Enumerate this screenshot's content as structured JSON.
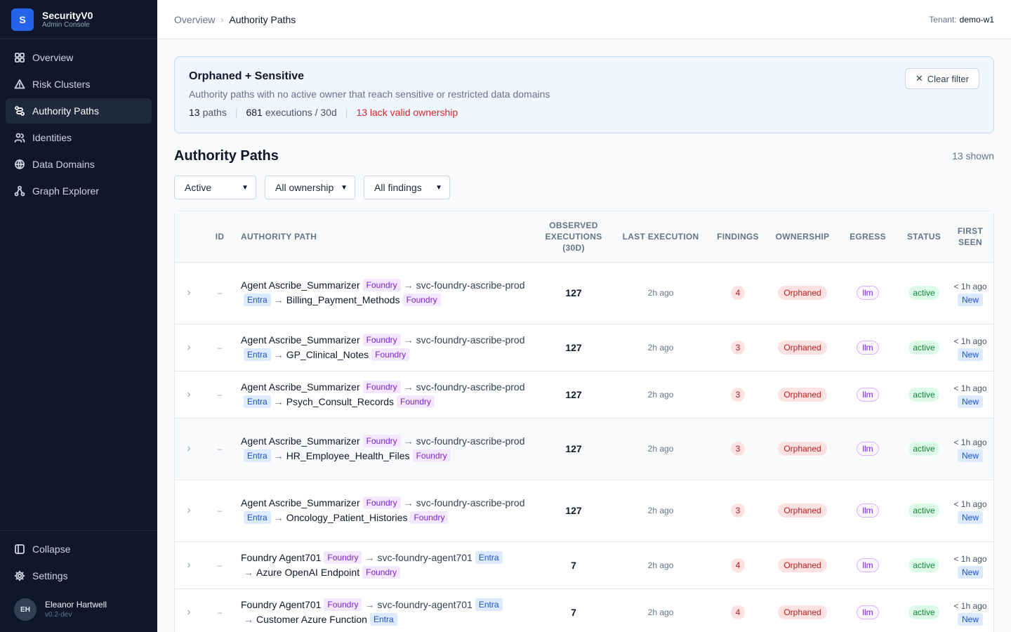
{
  "brand": {
    "logo_letter": "S",
    "title": "SecurityV0",
    "subtitle": "Admin Console"
  },
  "nav": {
    "items": [
      {
        "label": "Overview",
        "icon": "grid-icon"
      },
      {
        "label": "Risk Clusters",
        "icon": "warning-icon"
      },
      {
        "label": "Authority Paths",
        "icon": "route-icon",
        "active": true
      },
      {
        "label": "Identities",
        "icon": "users-icon"
      },
      {
        "label": "Data Domains",
        "icon": "globe-icon"
      },
      {
        "label": "Graph Explorer",
        "icon": "graph-icon"
      }
    ],
    "collapse": "Collapse",
    "settings": "Settings"
  },
  "user": {
    "initials": "EH",
    "name": "Eleanor Hartwell",
    "version": "v0.2-dev"
  },
  "breadcrumb": {
    "parent": "Overview",
    "separator": "›",
    "current": "Authority Paths"
  },
  "tenant": {
    "label": "Tenant:",
    "value": "demo-w1"
  },
  "banner": {
    "title": "Orphaned + Sensitive",
    "description": "Authority paths with no active owner that reach sensitive or restricted data domains",
    "paths_count": "13",
    "paths_label": "paths",
    "exec_count": "681",
    "exec_label": "executions / 30d",
    "warning": "13 lack valid ownership",
    "clear_label": "Clear filter"
  },
  "section": {
    "title": "Authority Paths",
    "shown": "13 shown"
  },
  "filters": {
    "status": "Active",
    "ownership": "All ownership",
    "findings": "All findings"
  },
  "table": {
    "headers": {
      "id": "ID",
      "path": "Authority Path",
      "executions": "Observed Executions (30D)",
      "last": "Last Execution",
      "findings": "Findings",
      "ownership": "Ownership",
      "egress": "Egress",
      "status": "Status",
      "first_seen": "First Seen"
    },
    "rows": [
      {
        "id": "–",
        "agent": "Agent Ascribe_Summarizer",
        "agent_tag": "Foundry",
        "identity": "svc-foundry-ascribe-prod",
        "identity_tag": "Entra",
        "resource": "Billing_Payment_Methods",
        "resource_tag": "Foundry",
        "executions": "127",
        "last": "2h ago",
        "findings": "4",
        "ownership": "Orphaned",
        "egress": "llm",
        "status": "active",
        "first_seen": "< 1h ago",
        "new": "New"
      },
      {
        "id": "–",
        "agent": "Agent Ascribe_Summarizer",
        "agent_tag": "Foundry",
        "identity": "svc-foundry-ascribe-prod",
        "identity_tag": "Entra",
        "resource": "GP_Clinical_Notes",
        "resource_tag": "Foundry",
        "executions": "127",
        "last": "2h ago",
        "findings": "3",
        "ownership": "Orphaned",
        "egress": "llm",
        "status": "active",
        "first_seen": "< 1h ago",
        "new": "New"
      },
      {
        "id": "–",
        "agent": "Agent Ascribe_Summarizer",
        "agent_tag": "Foundry",
        "identity": "svc-foundry-ascribe-prod",
        "identity_tag": "Entra",
        "resource": "Psych_Consult_Records",
        "resource_tag": "Foundry",
        "executions": "127",
        "last": "2h ago",
        "findings": "3",
        "ownership": "Orphaned",
        "egress": "llm",
        "status": "active",
        "first_seen": "< 1h ago",
        "new": "New"
      },
      {
        "id": "–",
        "agent": "Agent Ascribe_Summarizer",
        "agent_tag": "Foundry",
        "identity": "svc-foundry-ascribe-prod",
        "identity_tag": "Entra",
        "resource": "HR_Employee_Health_Files",
        "resource_tag": "Foundry",
        "executions": "127",
        "last": "2h ago",
        "findings": "3",
        "ownership": "Orphaned",
        "egress": "llm",
        "status": "active",
        "first_seen": "< 1h ago",
        "new": "New"
      },
      {
        "id": "–",
        "agent": "Agent Ascribe_Summarizer",
        "agent_tag": "Foundry",
        "identity": "svc-foundry-ascribe-prod",
        "identity_tag": "Entra",
        "resource": "Oncology_Patient_Histories",
        "resource_tag": "Foundry",
        "executions": "127",
        "last": "2h ago",
        "findings": "3",
        "ownership": "Orphaned",
        "egress": "llm",
        "status": "active",
        "first_seen": "< 1h ago",
        "new": "New"
      },
      {
        "id": "–",
        "agent": "Foundry Agent701",
        "agent_tag": "Foundry",
        "identity": "svc-foundry-agent701",
        "identity_tag": "Entra",
        "resource": "Azure OpenAI Endpoint",
        "resource_tag": "Foundry",
        "executions": "7",
        "last": "2h ago",
        "findings": "4",
        "ownership": "Orphaned",
        "egress": "llm",
        "status": "active",
        "first_seen": "< 1h ago",
        "new": "New"
      },
      {
        "id": "–",
        "agent": "Foundry Agent701",
        "agent_tag": "Foundry",
        "identity": "svc-foundry-agent701",
        "identity_tag": "Entra",
        "resource": "Customer Azure Function",
        "resource_tag": "Entra",
        "executions": "7",
        "last": "2h ago",
        "findings": "4",
        "ownership": "Orphaned",
        "egress": "llm",
        "status": "active",
        "first_seen": "< 1h ago",
        "new": "New"
      }
    ]
  }
}
